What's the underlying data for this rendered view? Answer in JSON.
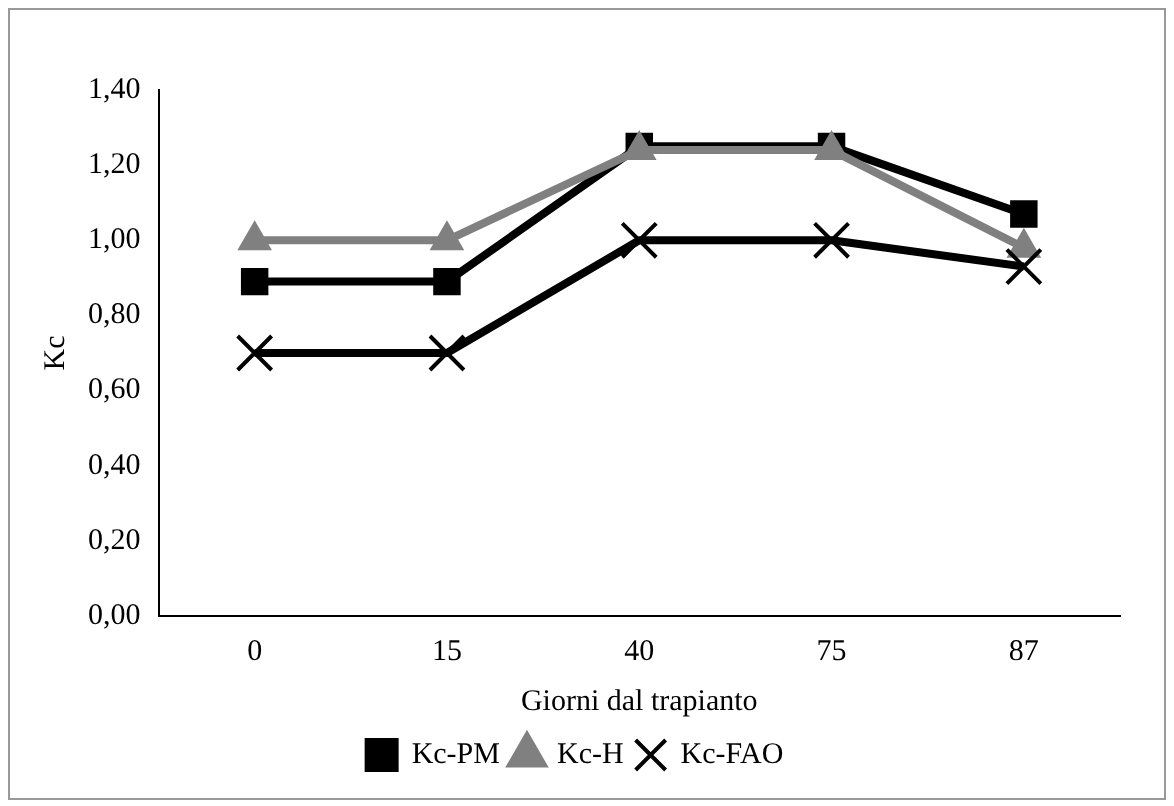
{
  "chart_data": {
    "type": "line",
    "xlabel": "Giorni dal trapianto",
    "ylabel": "Kc",
    "categories": [
      "0",
      "15",
      "40",
      "75",
      "87"
    ],
    "ylim": [
      0,
      1.4
    ],
    "yticks": [
      {
        "value": 0,
        "label": "0,00"
      },
      {
        "value": 0.2,
        "label": "0,20"
      },
      {
        "value": 0.4,
        "label": "0,40"
      },
      {
        "value": 0.6,
        "label": "0,60"
      },
      {
        "value": 0.8,
        "label": "0,80"
      },
      {
        "value": 1.0,
        "label": "1,00"
      },
      {
        "value": 1.2,
        "label": "1,20"
      },
      {
        "value": 1.4,
        "label": "1,40"
      }
    ],
    "grid": false,
    "legend": "bottom",
    "line_style": "solid",
    "series": [
      {
        "name": "Kc-PM",
        "color": "#000000",
        "marker": "square",
        "values": [
          0.89,
          0.89,
          1.25,
          1.25,
          1.07
        ]
      },
      {
        "name": "Kc-H",
        "color": "#808080",
        "marker": "triangle",
        "values": [
          1.0,
          1.0,
          1.24,
          1.24,
          0.98
        ]
      },
      {
        "name": "Kc-FAO",
        "color": "#000000",
        "marker": "cross",
        "values": [
          0.7,
          0.7,
          1.0,
          1.0,
          0.93
        ]
      }
    ]
  }
}
